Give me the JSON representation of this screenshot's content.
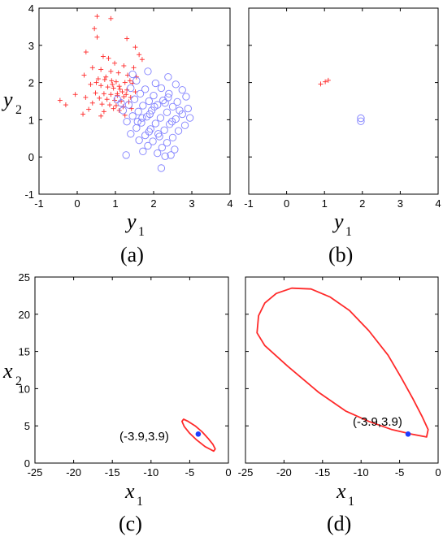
{
  "colors": {
    "red": "#ff2a2a",
    "blue": "#8080ff",
    "point": "#1f3dff",
    "axis": "#000000"
  },
  "chart_data": [
    {
      "panel": "(a)",
      "type": "scatter",
      "xlabel": "y",
      "xlabel_sub": "1",
      "ylabel": "y",
      "ylabel_sub": "2",
      "xlim": [
        -1,
        4
      ],
      "ylim": [
        -1,
        4
      ],
      "xticks": [
        -1,
        0,
        1,
        2,
        3,
        4
      ],
      "yticks": [
        -1,
        0,
        1,
        2,
        3,
        4
      ],
      "series": [
        {
          "marker": "plus",
          "color": "red",
          "points": [
            [
              0.52,
              3.78
            ],
            [
              0.88,
              3.72
            ],
            [
              0.45,
              3.45
            ],
            [
              0.52,
              3.22
            ],
            [
              1.3,
              3.18
            ],
            [
              1.52,
              2.95
            ],
            [
              0.23,
              2.82
            ],
            [
              0.68,
              2.7
            ],
            [
              0.82,
              2.65
            ],
            [
              1.62,
              2.75
            ],
            [
              1.7,
              2.62
            ],
            [
              0.98,
              2.52
            ],
            [
              1.22,
              2.45
            ],
            [
              1.48,
              2.4
            ],
            [
              0.4,
              2.4
            ],
            [
              0.62,
              2.35
            ],
            [
              0.88,
              2.3
            ],
            [
              1.08,
              2.26
            ],
            [
              0.18,
              2.2
            ],
            [
              1.32,
              2.2
            ],
            [
              1.55,
              2.15
            ],
            [
              0.55,
              2.1
            ],
            [
              0.72,
              2.08
            ],
            [
              0.9,
              2.05
            ],
            [
              1.02,
              2.02
            ],
            [
              1.25,
              2.0
            ],
            [
              1.45,
              1.98
            ],
            [
              0.35,
              1.95
            ],
            [
              0.62,
              1.92
            ],
            [
              0.8,
              1.88
            ],
            [
              0.95,
              1.85
            ],
            [
              1.12,
              1.82
            ],
            [
              1.3,
              1.8
            ],
            [
              1.52,
              1.75
            ],
            [
              0.48,
              1.72
            ],
            [
              0.7,
              1.7
            ],
            [
              0.88,
              1.68
            ],
            [
              1.05,
              1.65
            ],
            [
              1.22,
              1.62
            ],
            [
              1.4,
              1.6
            ],
            [
              0.22,
              1.6
            ],
            [
              0.58,
              1.58
            ],
            [
              0.78,
              1.55
            ],
            [
              0.98,
              1.52
            ],
            [
              1.15,
              1.5
            ],
            [
              1.35,
              1.48
            ],
            [
              -0.05,
              1.68
            ],
            [
              0.4,
              1.45
            ],
            [
              0.65,
              1.42
            ],
            [
              0.85,
              1.4
            ],
            [
              1.02,
              1.38
            ],
            [
              1.2,
              1.35
            ],
            [
              -0.45,
              1.52
            ],
            [
              -0.3,
              1.4
            ],
            [
              0.3,
              1.28
            ],
            [
              0.7,
              1.22
            ],
            [
              0.95,
              1.3
            ],
            [
              1.1,
              1.25
            ],
            [
              1.42,
              1.3
            ],
            [
              0.15,
              1.15
            ],
            [
              0.62,
              1.1
            ],
            [
              1.25,
              1.12
            ],
            [
              1.05,
              1.7
            ],
            [
              1.18,
              1.75
            ],
            [
              1.28,
              1.68
            ],
            [
              0.92,
              1.95
            ],
            [
              0.75,
              2.15
            ],
            [
              1.38,
              2.05
            ],
            [
              0.5,
              2.0
            ],
            [
              1.1,
              1.9
            ]
          ]
        },
        {
          "marker": "circle",
          "color": "blue",
          "points": [
            [
              1.45,
              2.22
            ],
            [
              1.85,
              2.3
            ],
            [
              2.38,
              2.15
            ],
            [
              1.55,
              2.05
            ],
            [
              2.05,
              1.98
            ],
            [
              2.58,
              1.95
            ],
            [
              1.4,
              1.85
            ],
            [
              1.78,
              1.82
            ],
            [
              2.2,
              1.85
            ],
            [
              2.75,
              1.8
            ],
            [
              1.65,
              1.7
            ],
            [
              2.0,
              1.65
            ],
            [
              2.4,
              1.7
            ],
            [
              2.85,
              1.62
            ],
            [
              1.5,
              1.55
            ],
            [
              1.88,
              1.5
            ],
            [
              2.25,
              1.52
            ],
            [
              2.62,
              1.48
            ],
            [
              1.35,
              1.4
            ],
            [
              1.72,
              1.38
            ],
            [
              2.1,
              1.4
            ],
            [
              2.5,
              1.35
            ],
            [
              2.9,
              1.3
            ],
            [
              1.2,
              1.25
            ],
            [
              1.6,
              1.22
            ],
            [
              1.95,
              1.25
            ],
            [
              2.35,
              1.2
            ],
            [
              2.75,
              1.15
            ],
            [
              1.45,
              1.1
            ],
            [
              1.82,
              1.08
            ],
            [
              2.18,
              1.05
            ],
            [
              2.58,
              1.02
            ],
            [
              1.3,
              0.95
            ],
            [
              1.68,
              0.92
            ],
            [
              2.05,
              0.9
            ],
            [
              2.42,
              0.88
            ],
            [
              2.82,
              0.85
            ],
            [
              1.55,
              0.78
            ],
            [
              1.92,
              0.75
            ],
            [
              2.28,
              0.72
            ],
            [
              2.65,
              0.7
            ],
            [
              1.4,
              0.62
            ],
            [
              1.78,
              0.58
            ],
            [
              2.15,
              0.55
            ],
            [
              2.5,
              0.52
            ],
            [
              1.62,
              0.45
            ],
            [
              1.98,
              0.42
            ],
            [
              2.35,
              0.38
            ],
            [
              1.85,
              0.3
            ],
            [
              2.22,
              0.25
            ],
            [
              2.55,
              0.2
            ],
            [
              1.72,
              0.15
            ],
            [
              2.1,
              0.1
            ],
            [
              2.45,
              0.05
            ],
            [
              1.28,
              0.05
            ],
            [
              2.3,
              0.02
            ],
            [
              2.2,
              -0.3
            ],
            [
              1.05,
              1.55
            ],
            [
              1.15,
              1.45
            ],
            [
              2.95,
              1.05
            ],
            [
              2.68,
              1.25
            ],
            [
              1.9,
              1.15
            ],
            [
              2.3,
              1.45
            ],
            [
              1.7,
              1.05
            ],
            [
              2.48,
              0.95
            ],
            [
              2.02,
              1.35
            ],
            [
              1.58,
              0.95
            ],
            [
              2.12,
              0.62
            ],
            [
              1.88,
              0.68
            ],
            [
              2.38,
              1.6
            ]
          ]
        }
      ]
    },
    {
      "panel": "(b)",
      "type": "scatter",
      "xlabel": "y",
      "xlabel_sub": "1",
      "xlim": [
        -1,
        4
      ],
      "ylim": [
        -1,
        4
      ],
      "xticks": [
        -1,
        0,
        1,
        2,
        3,
        4
      ],
      "series": [
        {
          "marker": "plus",
          "color": "red",
          "points": [
            [
              0.9,
              1.96
            ],
            [
              1.02,
              2.02
            ],
            [
              1.1,
              2.06
            ]
          ]
        },
        {
          "marker": "circle",
          "color": "blue",
          "points": [
            [
              1.96,
              1.04
            ],
            [
              1.96,
              0.96
            ]
          ]
        }
      ]
    },
    {
      "panel": "(c)",
      "type": "line",
      "xlabel": "x",
      "xlabel_sub": "1",
      "ylabel": "x",
      "ylabel_sub": "2",
      "xlim": [
        -25,
        0
      ],
      "ylim": [
        0,
        25
      ],
      "xticks": [
        -25,
        -20,
        -15,
        -10,
        -5,
        0
      ],
      "yticks": [
        0,
        5,
        10,
        15,
        20,
        25
      ],
      "curve": [
        [
          -1.9,
          1.6
        ],
        [
          -3.0,
          2.2
        ],
        [
          -4.1,
          3.1
        ],
        [
          -5.0,
          4.0
        ],
        [
          -5.7,
          4.9
        ],
        [
          -6.0,
          5.6
        ],
        [
          -5.8,
          5.9
        ],
        [
          -5.2,
          5.6
        ],
        [
          -4.3,
          5.0
        ],
        [
          -3.4,
          4.2
        ],
        [
          -2.6,
          3.3
        ],
        [
          -2.0,
          2.5
        ],
        [
          -1.7,
          1.9
        ],
        [
          -1.9,
          1.6
        ]
      ],
      "point": [
        -3.9,
        3.9
      ],
      "annotation": "(-3.9,3.9)"
    },
    {
      "panel": "(d)",
      "type": "line",
      "xlabel": "x",
      "xlabel_sub": "1",
      "xlim": [
        -25,
        0
      ],
      "ylim": [
        0,
        25
      ],
      "xticks": [
        -25,
        -20,
        -15,
        -10,
        -5,
        0
      ],
      "curve": [
        [
          -1.5,
          3.5
        ],
        [
          -3.5,
          3.9
        ],
        [
          -6.0,
          4.5
        ],
        [
          -9.0,
          5.6
        ],
        [
          -12.0,
          7.0
        ],
        [
          -15.5,
          9.5
        ],
        [
          -19.5,
          13.0
        ],
        [
          -22.5,
          15.8
        ],
        [
          -23.5,
          17.5
        ],
        [
          -23.3,
          19.8
        ],
        [
          -22.5,
          21.5
        ],
        [
          -21.0,
          22.8
        ],
        [
          -19.0,
          23.5
        ],
        [
          -16.5,
          23.4
        ],
        [
          -14.0,
          22.3
        ],
        [
          -11.5,
          20.5
        ],
        [
          -9.0,
          17.8
        ],
        [
          -6.5,
          14.5
        ],
        [
          -4.8,
          11.5
        ],
        [
          -3.3,
          8.7
        ],
        [
          -2.1,
          6.3
        ],
        [
          -1.3,
          4.5
        ],
        [
          -1.5,
          3.5
        ]
      ],
      "point": [
        -3.9,
        3.9
      ],
      "annotation": "(-3.9,3.9)"
    }
  ],
  "captions": [
    "(a)",
    "(b)",
    "(c)",
    "(d)"
  ]
}
